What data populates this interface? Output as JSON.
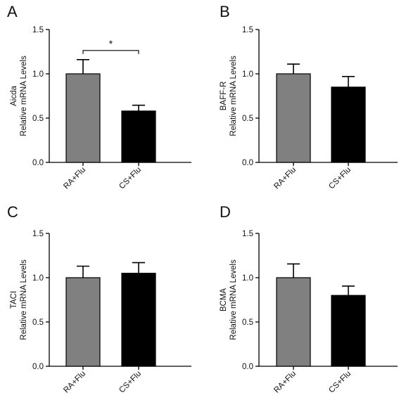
{
  "chart_data": [
    {
      "type": "bar",
      "panel": "A",
      "ylabel_lines": [
        "Aicda",
        "Relative mRNA Levels"
      ],
      "categories": [
        "RA+Flu",
        "CS+Flu"
      ],
      "values": [
        1.0,
        0.58
      ],
      "errors": [
        0.16,
        0.065
      ],
      "colors": [
        "#808080",
        "#000000"
      ],
      "ylim": [
        0,
        1.5
      ],
      "yticks": [
        "0.0",
        "0.5",
        "1.0",
        "1.5"
      ],
      "significance": "*"
    },
    {
      "type": "bar",
      "panel": "B",
      "ylabel_lines": [
        "BAFF-R",
        "Relative mRNA Levels"
      ],
      "categories": [
        "RA+Flu",
        "CS+Flu"
      ],
      "values": [
        1.0,
        0.85
      ],
      "errors": [
        0.11,
        0.12
      ],
      "colors": [
        "#808080",
        "#000000"
      ],
      "ylim": [
        0,
        1.5
      ],
      "yticks": [
        "0.0",
        "0.5",
        "1.0",
        "1.5"
      ]
    },
    {
      "type": "bar",
      "panel": "C",
      "ylabel_lines": [
        "TACI",
        "Relative mRNA Levels"
      ],
      "categories": [
        "RA+Flu",
        "CS+Flu"
      ],
      "values": [
        1.0,
        1.05
      ],
      "errors": [
        0.13,
        0.12
      ],
      "colors": [
        "#808080",
        "#000000"
      ],
      "ylim": [
        0,
        1.5
      ],
      "yticks": [
        "0.0",
        "0.5",
        "1.0",
        "1.5"
      ]
    },
    {
      "type": "bar",
      "panel": "D",
      "ylabel_lines": [
        "BCMA",
        "Relative mRNA Levels"
      ],
      "categories": [
        "RA+Flu",
        "CS+Flu"
      ],
      "values": [
        1.0,
        0.8
      ],
      "errors": [
        0.155,
        0.105
      ],
      "colors": [
        "#808080",
        "#000000"
      ],
      "ylim": [
        0,
        1.5
      ],
      "yticks": [
        "0.0",
        "0.5",
        "1.0",
        "1.5"
      ]
    }
  ]
}
